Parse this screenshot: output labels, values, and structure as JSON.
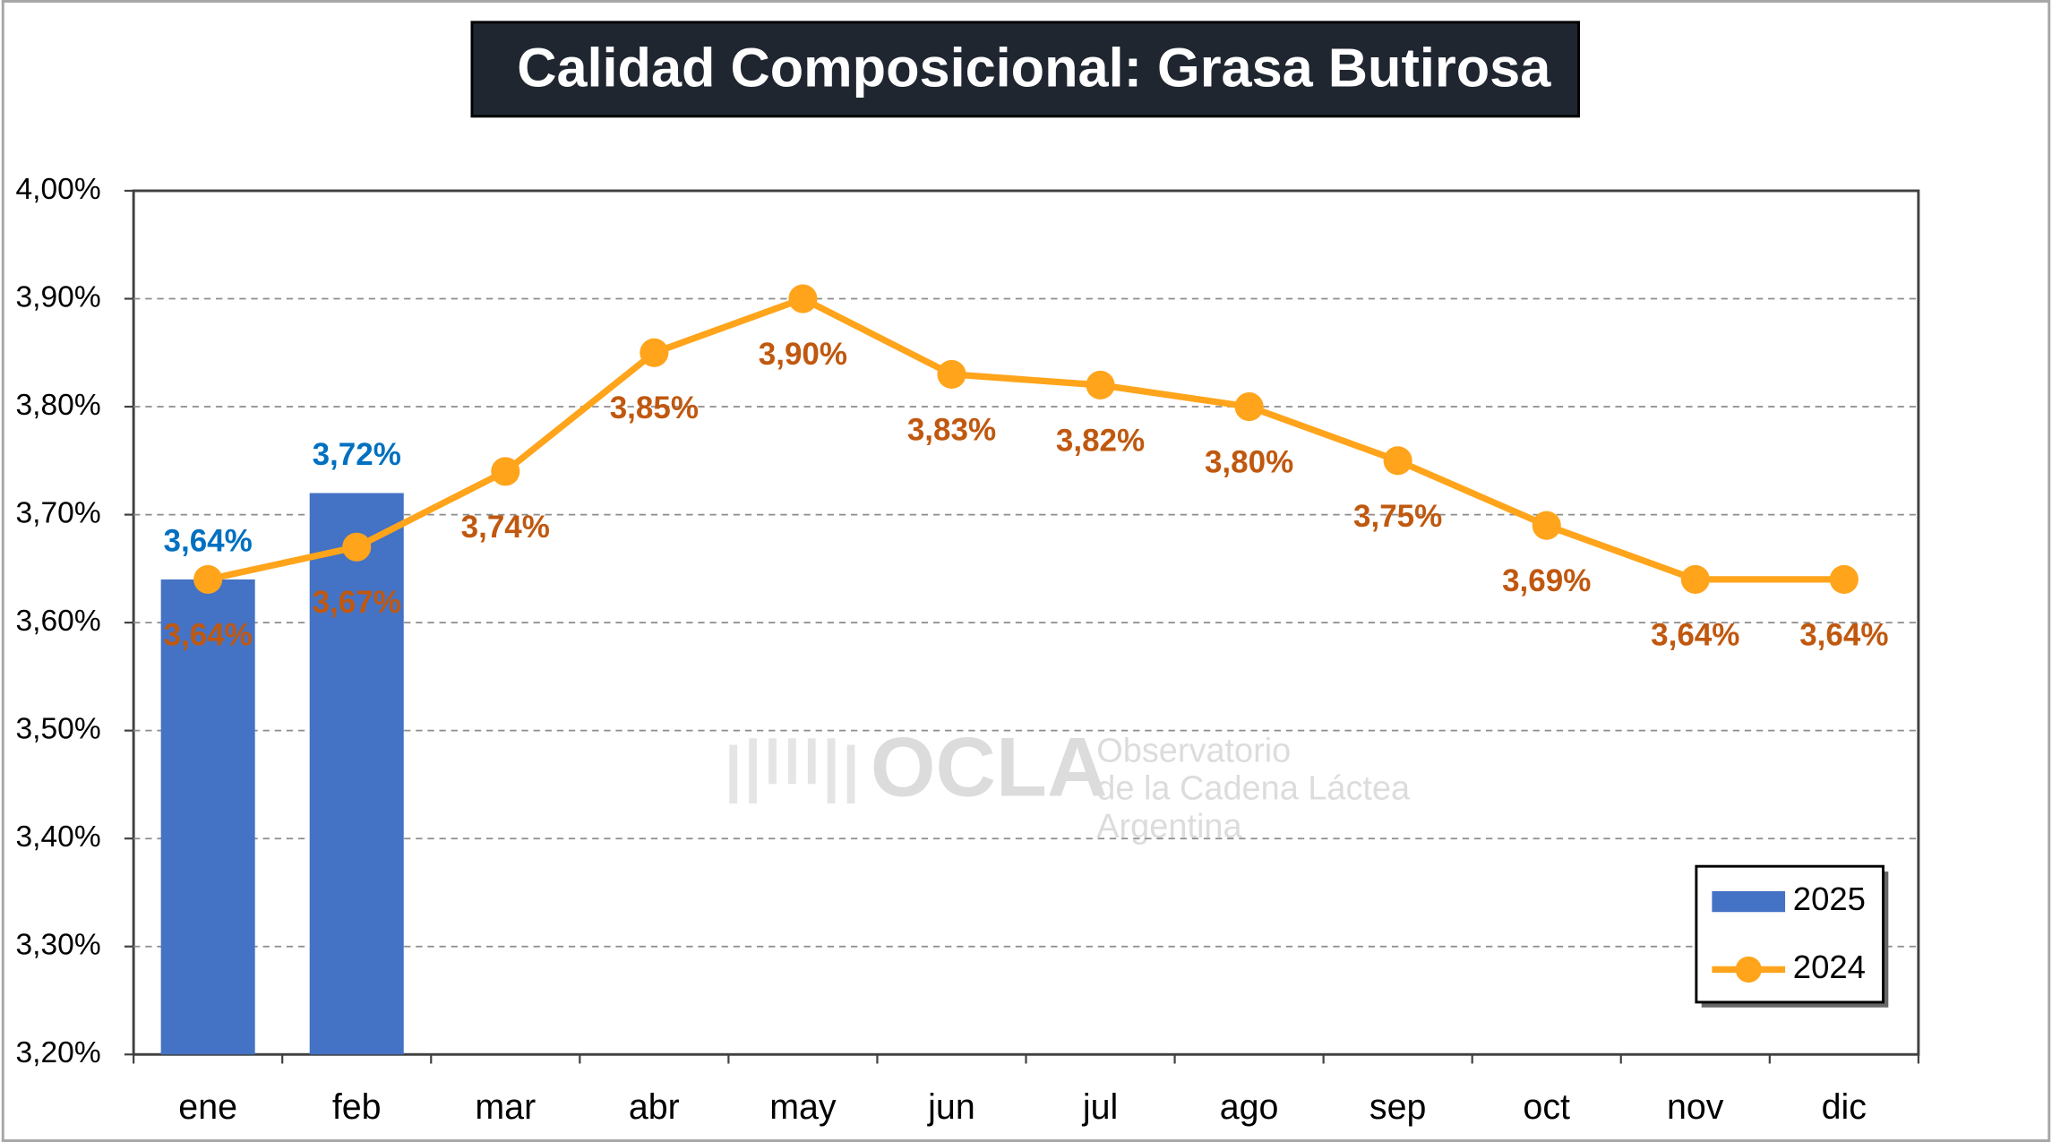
{
  "chart_data": {
    "type": "bar",
    "title": "Calidad Composicional: Grasa Butirosa",
    "categories": [
      "ene",
      "feb",
      "mar",
      "abr",
      "may",
      "jun",
      "jul",
      "ago",
      "sep",
      "oct",
      "nov",
      "dic"
    ],
    "series": [
      {
        "name": "2025",
        "type": "bar",
        "color": "#4472c4",
        "label_color": "#0070c0",
        "values": [
          3.64,
          3.72,
          null,
          null,
          null,
          null,
          null,
          null,
          null,
          null,
          null,
          null
        ],
        "value_labels": [
          "3,64%",
          "3,72%",
          null,
          null,
          null,
          null,
          null,
          null,
          null,
          null,
          null,
          null
        ]
      },
      {
        "name": "2024",
        "type": "line",
        "color": "#ffa41b",
        "label_color": "#c0580f",
        "values": [
          3.64,
          3.67,
          3.74,
          3.85,
          3.9,
          3.83,
          3.82,
          3.8,
          3.75,
          3.69,
          3.64,
          3.64
        ],
        "value_labels": [
          "3,64%",
          "3,67%",
          "3,74%",
          "3,85%",
          "3,90%",
          "3,83%",
          "3,82%",
          "3,80%",
          "3,75%",
          "3,69%",
          "3,64%",
          "3,64%"
        ]
      }
    ],
    "ylim": [
      3.2,
      4.0
    ],
    "yticks": [
      {
        "value": 3.2,
        "label": "3,20%"
      },
      {
        "value": 3.3,
        "label": "3,30%"
      },
      {
        "value": 3.4,
        "label": "3,40%"
      },
      {
        "value": 3.5,
        "label": "3,50%"
      },
      {
        "value": 3.6,
        "label": "3,60%"
      },
      {
        "value": 3.7,
        "label": "3,70%"
      },
      {
        "value": 3.8,
        "label": "3,80%"
      },
      {
        "value": 3.9,
        "label": "3,90%"
      },
      {
        "value": 4.0,
        "label": "4,00%"
      }
    ],
    "grid": true,
    "legend": "bottom-right",
    "watermark": {
      "logo": "OCLA",
      "lines": [
        "Observatorio",
        "de la Cadena Láctea",
        "Argentina"
      ]
    }
  }
}
